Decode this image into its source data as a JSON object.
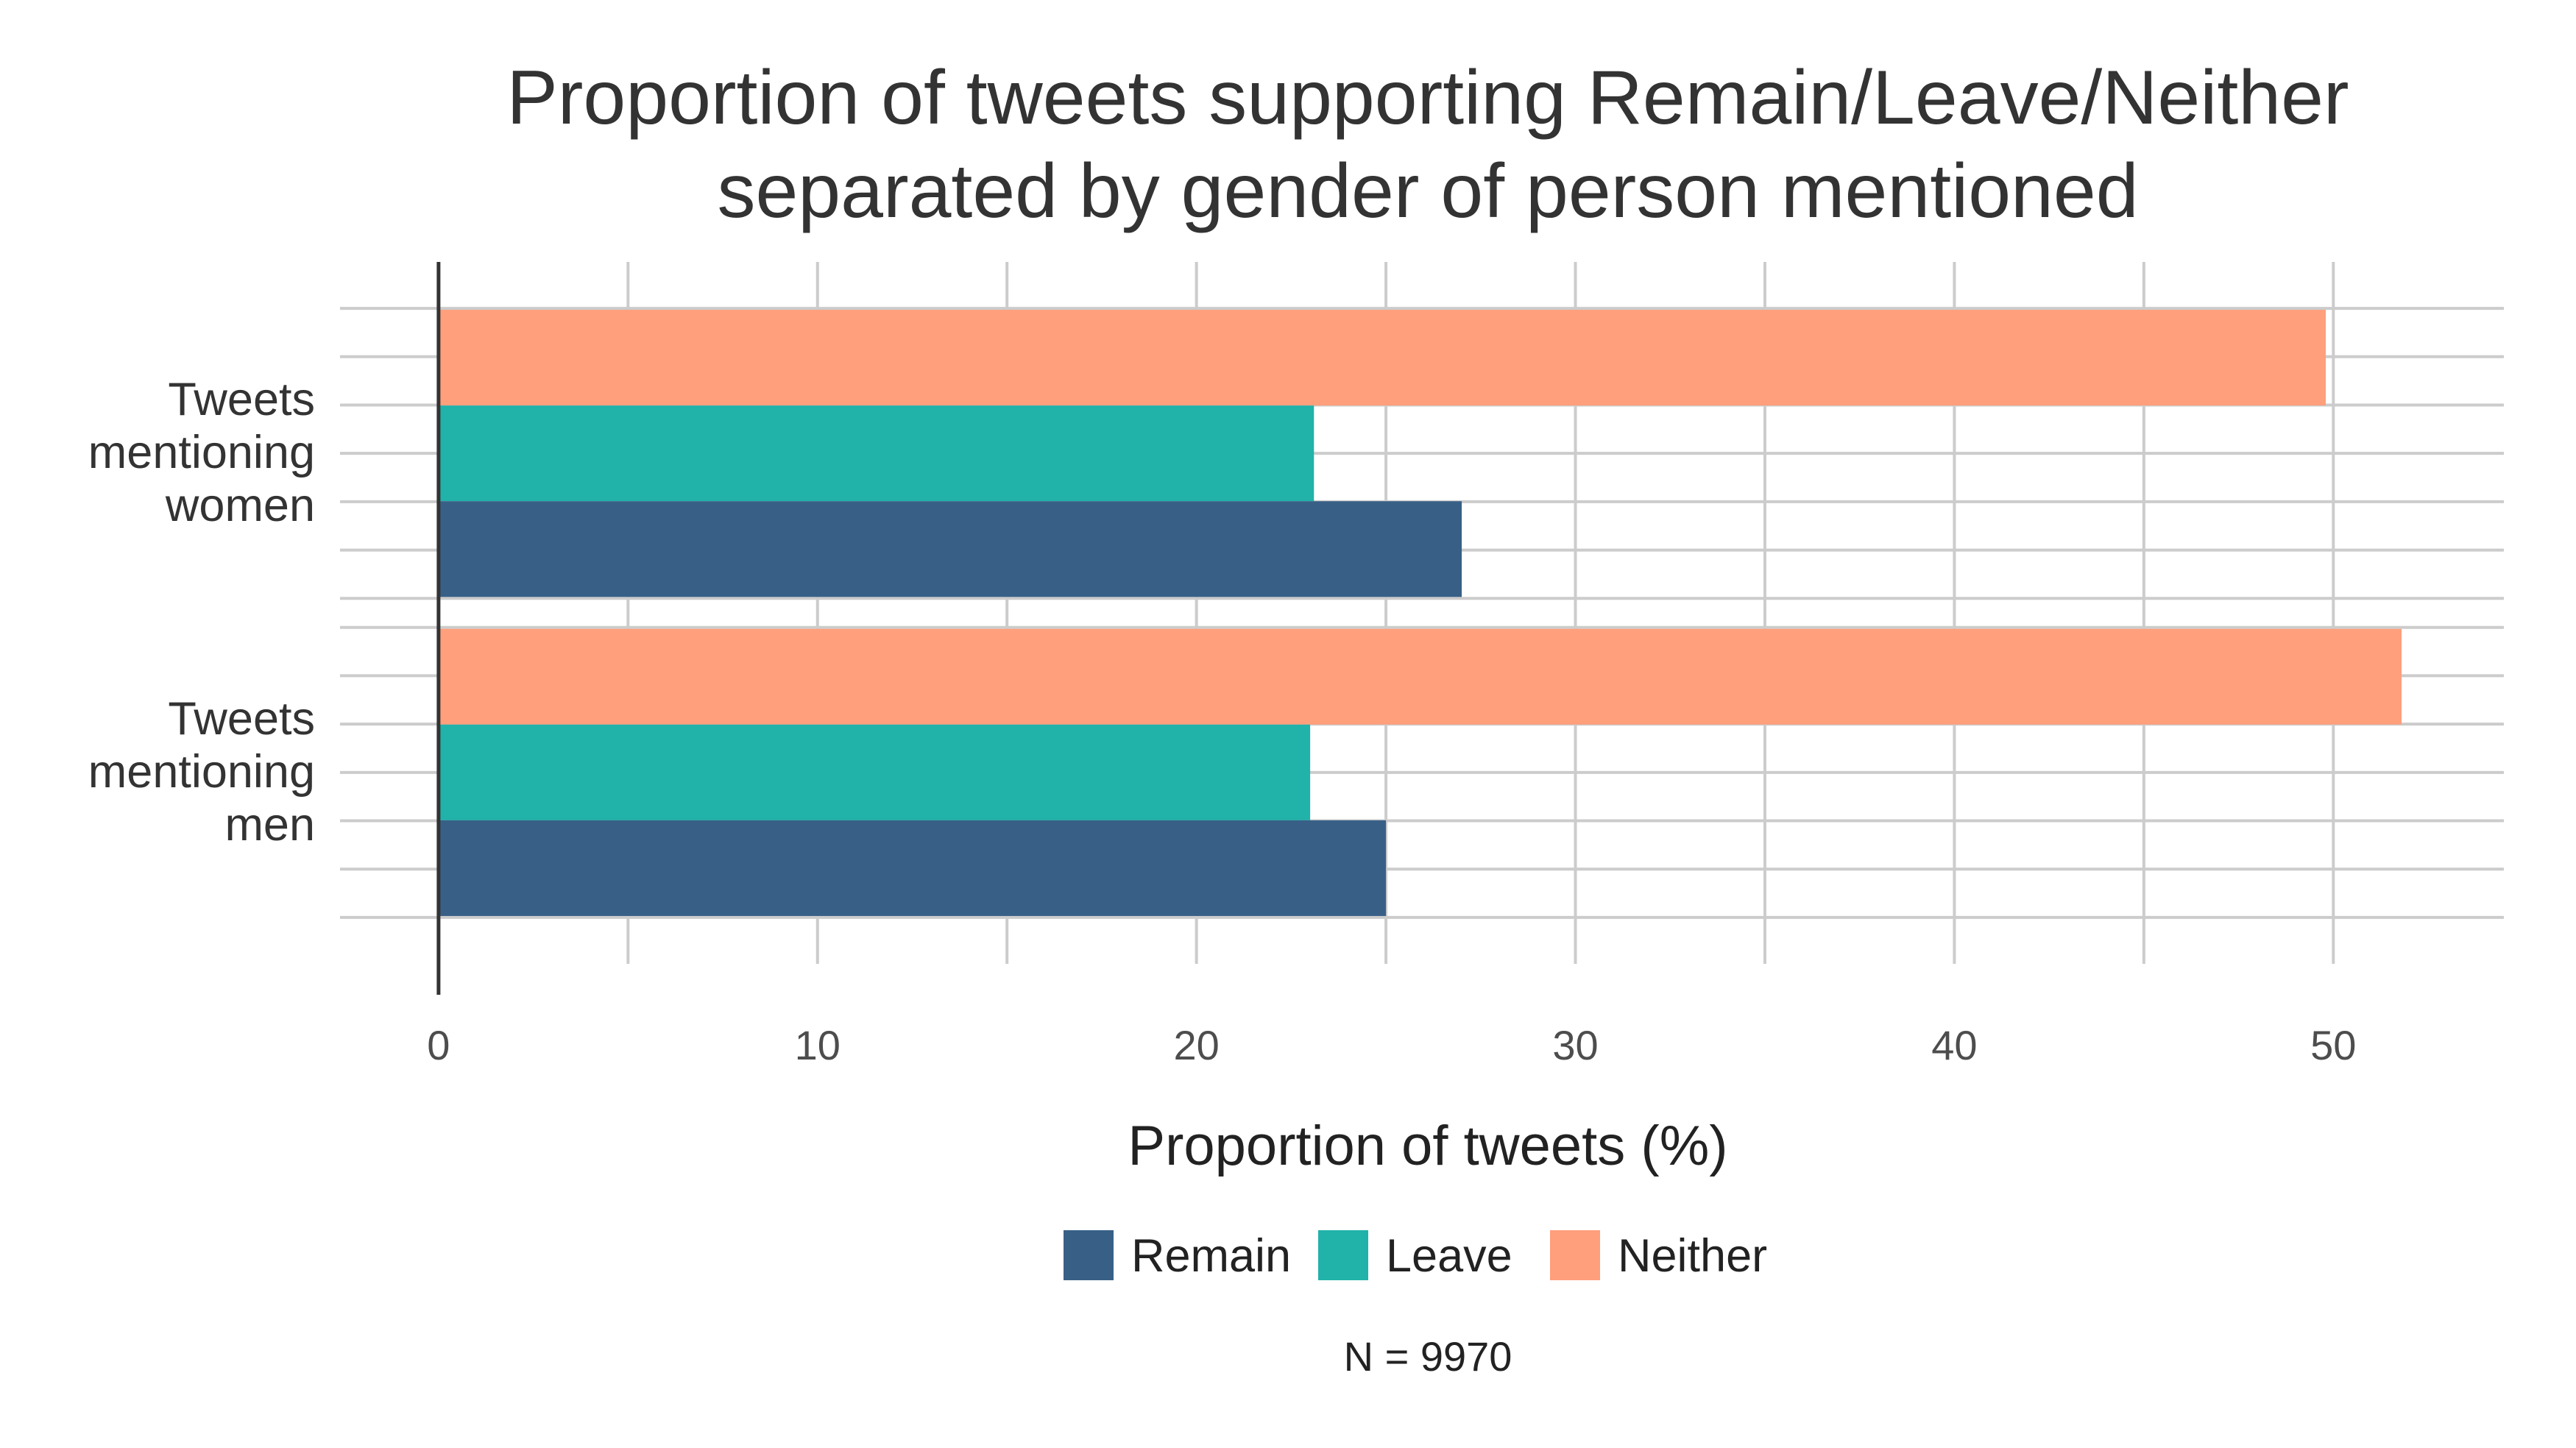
{
  "chart_data": {
    "type": "bar",
    "orientation": "horizontal",
    "title": [
      "Proportion of tweets supporting Remain/Leave/Neither",
      "separated by gender of person mentioned"
    ],
    "xlabel": "Proportion of tweets (%)",
    "ylabel": "",
    "xlim": [
      -2.6,
      54.5
    ],
    "xticks": [
      0,
      10,
      20,
      30,
      40,
      50
    ],
    "categories": [
      {
        "key": "men",
        "lines": [
          "Tweets",
          "mentioning",
          "men"
        ]
      },
      {
        "key": "women",
        "lines": [
          "Tweets",
          "mentioning",
          "women"
        ]
      }
    ],
    "series": [
      {
        "name": "Remain",
        "color": "#386087",
        "values": [
          25.0,
          27.0
        ]
      },
      {
        "name": "Leave",
        "color": "#21b2a9",
        "values": [
          23.0,
          23.1
        ]
      },
      {
        "name": "Neither",
        "color": "#ff9f7c",
        "values": [
          51.8,
          49.8
        ]
      }
    ],
    "legend_position": "bottom",
    "grid": true,
    "caption": "N = 9970"
  }
}
